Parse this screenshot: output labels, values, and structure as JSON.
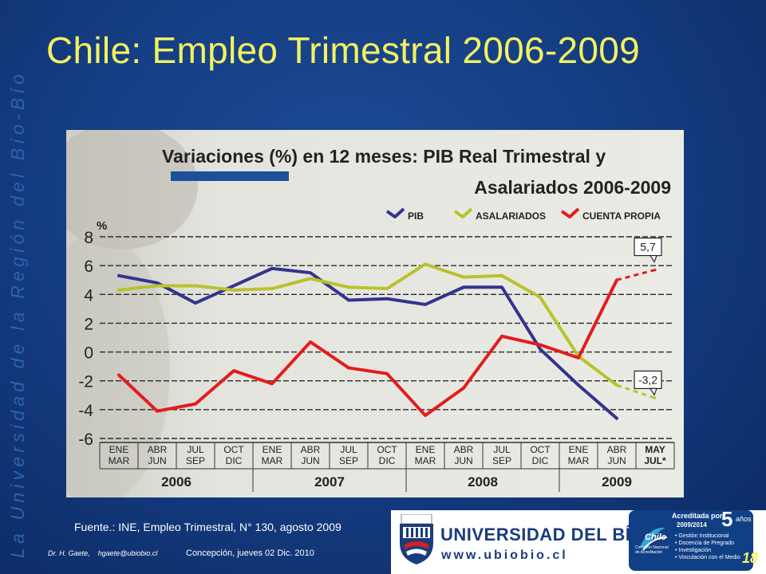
{
  "slide": {
    "title": "Chile: Empleo Trimestral 2006-2009",
    "vertical_motto": "La Universidad de la Región del Bío-Bío",
    "source": "Fuente.: INE, Empleo Trimestral, N° 130, agosto 2009",
    "author": "Dr. H. Gaete,",
    "email": "hgaete@ubiobio.cl",
    "date": "Concepción, jueves 02 Dic. 2010",
    "slide_number": "18"
  },
  "university": {
    "name": "UNIVERSIDAD DEL BÍO-BÍO",
    "url": "www.ubiobio.cl"
  },
  "accreditation": {
    "title": "Acreditada por",
    "years_num": "5",
    "years_word": "años",
    "period": "2009/2014",
    "areas": [
      "Gestión Institucional",
      "Docencia de Pregrado",
      "Investigación",
      "Vinculación con el Medio"
    ],
    "chile_label": "Chile",
    "commission": "Comisión Nacional de Acreditación"
  },
  "chart_data": {
    "type": "line",
    "title": "Variaciones (%) en 12 meses: PIB Real Trimestral y Asalariados 2006-2009",
    "title_line1": "Variaciones (%) en 12 meses: PIB Real Trimestral y",
    "title_line2": "Asalariados 2006-2009",
    "ylabel": "%",
    "ylim": [
      -6,
      8
    ],
    "yticks": [
      8,
      6,
      4,
      2,
      0,
      -2,
      -4,
      -6
    ],
    "categories": [
      [
        "ENE",
        "MAR"
      ],
      [
        "ABR",
        "JUN"
      ],
      [
        "JUL",
        "SEP"
      ],
      [
        "OCT",
        "DIC"
      ],
      [
        "ENE",
        "MAR"
      ],
      [
        "ABR",
        "JUN"
      ],
      [
        "JUL",
        "SEP"
      ],
      [
        "OCT",
        "DIC"
      ],
      [
        "ENE",
        "MAR"
      ],
      [
        "ABR",
        "JUN"
      ],
      [
        "JUL",
        "SEP"
      ],
      [
        "OCT",
        "DIC"
      ],
      [
        "ENE",
        "MAR"
      ],
      [
        "ABR",
        "JUN"
      ],
      [
        "MAY",
        "JUL*"
      ]
    ],
    "years": [
      "2006",
      "2007",
      "2008",
      "2009"
    ],
    "series": [
      {
        "name": "PIB",
        "color": "#34338e",
        "values": [
          5.3,
          4.8,
          3.4,
          4.6,
          5.8,
          5.5,
          3.6,
          3.7,
          3.3,
          4.5,
          4.5,
          0.2,
          -2.3,
          -4.6,
          null
        ]
      },
      {
        "name": "ASALARIADOS",
        "color": "#b9c22b",
        "values": [
          4.3,
          4.6,
          4.6,
          4.3,
          4.4,
          5.1,
          4.5,
          4.4,
          6.1,
          5.2,
          5.3,
          3.8,
          -0.3,
          -2.3,
          -3.2
        ]
      },
      {
        "name": "CUENTA PROPIA",
        "color": "#e21d1d",
        "values": [
          -1.6,
          -4.1,
          -3.6,
          -1.3,
          -2.2,
          0.7,
          -1.1,
          -1.5,
          -4.4,
          -2.5,
          1.1,
          0.5,
          -0.4,
          5.0,
          5.7
        ]
      }
    ],
    "dashed_last_segment": true,
    "callouts": [
      {
        "label": "5,7",
        "value": 5.7,
        "series": "CUENTA PROPIA"
      },
      {
        "label": "-3,2",
        "value": -3.2,
        "series": "ASALARIADOS"
      }
    ],
    "grid": true,
    "legend": "top-right"
  }
}
